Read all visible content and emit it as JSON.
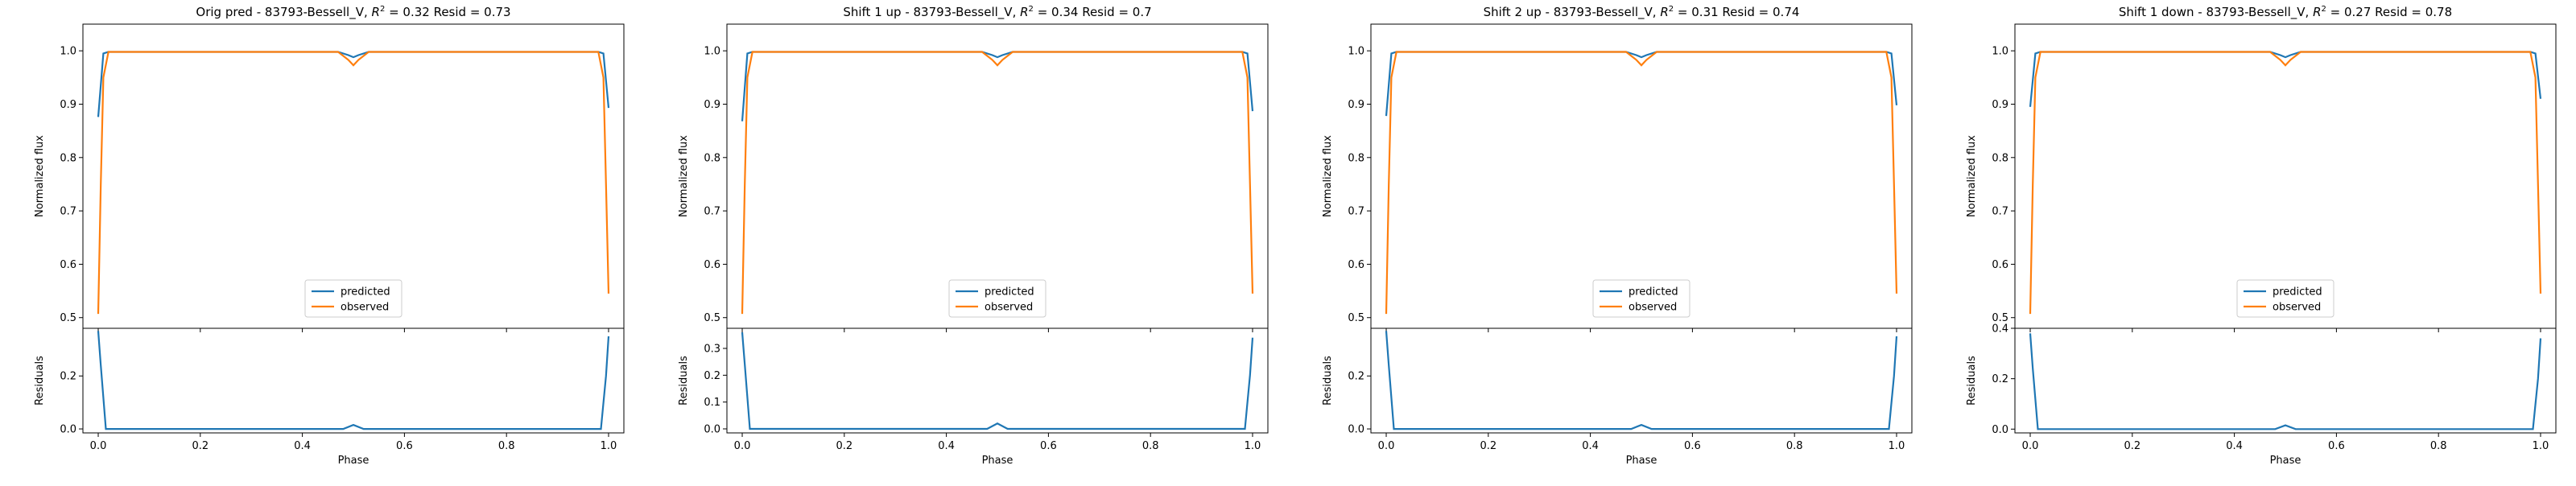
{
  "figure": {
    "colors": {
      "predicted": "#1f77b4",
      "observed": "#ff7f0e",
      "axis": "#000000"
    },
    "legend_location": "lower center",
    "labels": {
      "top_ylabel": "Normalized flux",
      "bottom_ylabel": "Residuals",
      "xlabel": "Phase",
      "legend_predicted": "predicted",
      "legend_observed": "observed"
    },
    "x_ticks": [
      "0.0",
      "0.2",
      "0.4",
      "0.6",
      "0.8",
      "1.0"
    ]
  },
  "chart_data": [
    {
      "type": "line",
      "title_prefix": "Orig pred - 83793-Bessell_V, ",
      "r2_label": "R",
      "r2_exp": "2",
      "title_suffix": " = 0.32 Resid = 0.73",
      "flux": {
        "ylim": [
          0.48,
          1.05
        ],
        "yticks": [
          "0.5",
          "0.6",
          "0.7",
          "0.8",
          "0.9",
          "1.0"
        ],
        "series": [
          {
            "name": "predicted",
            "x": [
              0.0,
              0.01,
              0.02,
              0.47,
              0.49,
              0.5,
              0.51,
              0.53,
              0.98,
              0.99,
              1.0
            ],
            "y": [
              0.876,
              0.995,
              0.998,
              0.998,
              0.992,
              0.988,
              0.992,
              0.998,
              0.998,
              0.995,
              0.893
            ]
          },
          {
            "name": "observed",
            "x": [
              0.0,
              0.005,
              0.01,
              0.02,
              0.47,
              0.49,
              0.5,
              0.51,
              0.53,
              0.98,
              0.99,
              0.995,
              1.0
            ],
            "y": [
              0.507,
              0.75,
              0.95,
              0.998,
              0.998,
              0.983,
              0.973,
              0.983,
              0.998,
              0.998,
              0.95,
              0.75,
              0.545
            ]
          }
        ]
      },
      "resid": {
        "ylim": [
          -0.015,
          0.38
        ],
        "yticks": [
          "0.0",
          "0.2"
        ],
        "x": [
          0.0,
          0.005,
          0.015,
          0.48,
          0.5,
          0.52,
          0.985,
          0.995,
          1.0
        ],
        "y": [
          0.37,
          0.24,
          0.0,
          0.0,
          0.015,
          0.0,
          0.0,
          0.2,
          0.35
        ]
      }
    },
    {
      "type": "line",
      "title_prefix": "Shift 1 up - 83793-Bessell_V, ",
      "r2_label": "R",
      "r2_exp": "2",
      "title_suffix": " = 0.34 Resid = 0.7",
      "flux": {
        "ylim": [
          0.48,
          1.05
        ],
        "yticks": [
          "0.5",
          "0.6",
          "0.7",
          "0.8",
          "0.9",
          "1.0"
        ],
        "series": [
          {
            "name": "predicted",
            "x": [
              0.0,
              0.01,
              0.02,
              0.47,
              0.49,
              0.5,
              0.51,
              0.53,
              0.98,
              0.99,
              1.0
            ],
            "y": [
              0.868,
              0.995,
              0.998,
              0.998,
              0.992,
              0.988,
              0.992,
              0.998,
              0.998,
              0.995,
              0.887
            ]
          },
          {
            "name": "observed",
            "x": [
              0.0,
              0.005,
              0.01,
              0.02,
              0.47,
              0.49,
              0.5,
              0.51,
              0.53,
              0.98,
              0.99,
              0.995,
              1.0
            ],
            "y": [
              0.507,
              0.75,
              0.95,
              0.998,
              0.998,
              0.983,
              0.973,
              0.983,
              0.998,
              0.998,
              0.95,
              0.75,
              0.545
            ]
          }
        ]
      },
      "resid": {
        "ylim": [
          -0.015,
          0.375
        ],
        "yticks": [
          "0.0",
          "0.1",
          "0.2",
          "0.3"
        ],
        "x": [
          0.0,
          0.005,
          0.015,
          0.48,
          0.5,
          0.52,
          0.985,
          0.995,
          1.0
        ],
        "y": [
          0.36,
          0.24,
          0.0,
          0.0,
          0.02,
          0.0,
          0.0,
          0.2,
          0.34
        ]
      }
    },
    {
      "type": "line",
      "title_prefix": "Shift 2 up - 83793-Bessell_V, ",
      "r2_label": "R",
      "r2_exp": "2",
      "title_suffix": " = 0.31 Resid = 0.74",
      "flux": {
        "ylim": [
          0.48,
          1.05
        ],
        "yticks": [
          "0.5",
          "0.6",
          "0.7",
          "0.8",
          "0.9",
          "1.0"
        ],
        "series": [
          {
            "name": "predicted",
            "x": [
              0.0,
              0.01,
              0.02,
              0.47,
              0.49,
              0.5,
              0.51,
              0.53,
              0.98,
              0.99,
              1.0
            ],
            "y": [
              0.878,
              0.995,
              0.998,
              0.998,
              0.992,
              0.988,
              0.992,
              0.998,
              0.998,
              0.995,
              0.898
            ]
          },
          {
            "name": "observed",
            "x": [
              0.0,
              0.005,
              0.01,
              0.02,
              0.47,
              0.49,
              0.5,
              0.51,
              0.53,
              0.98,
              0.99,
              0.995,
              1.0
            ],
            "y": [
              0.507,
              0.75,
              0.95,
              0.998,
              0.998,
              0.983,
              0.973,
              0.983,
              0.998,
              0.998,
              0.95,
              0.75,
              0.545
            ]
          }
        ]
      },
      "resid": {
        "ylim": [
          -0.015,
          0.38
        ],
        "yticks": [
          "0.0",
          "0.2"
        ],
        "x": [
          0.0,
          0.005,
          0.015,
          0.48,
          0.5,
          0.52,
          0.985,
          0.995,
          1.0
        ],
        "y": [
          0.37,
          0.24,
          0.0,
          0.0,
          0.015,
          0.0,
          0.0,
          0.2,
          0.35
        ]
      }
    },
    {
      "type": "line",
      "title_prefix": "Shift 1 down - 83793-Bessell_V, ",
      "r2_label": "R",
      "r2_exp": "2",
      "title_suffix": " = 0.27 Resid = 0.78",
      "flux": {
        "ylim": [
          0.48,
          1.05
        ],
        "yticks": [
          "0.5",
          "0.6",
          "0.7",
          "0.8",
          "0.9",
          "1.0"
        ],
        "series": [
          {
            "name": "predicted",
            "x": [
              0.0,
              0.01,
              0.02,
              0.47,
              0.49,
              0.5,
              0.51,
              0.53,
              0.98,
              0.99,
              1.0
            ],
            "y": [
              0.895,
              0.995,
              0.998,
              0.998,
              0.992,
              0.988,
              0.992,
              0.998,
              0.998,
              0.995,
              0.91
            ]
          },
          {
            "name": "observed",
            "x": [
              0.0,
              0.005,
              0.01,
              0.02,
              0.47,
              0.49,
              0.5,
              0.51,
              0.53,
              0.98,
              0.99,
              0.995,
              1.0
            ],
            "y": [
              0.507,
              0.75,
              0.95,
              0.998,
              0.998,
              0.983,
              0.973,
              0.983,
              0.998,
              0.998,
              0.95,
              0.75,
              0.545
            ]
          }
        ]
      },
      "resid": {
        "ylim": [
          -0.015,
          0.4
        ],
        "yticks": [
          "0.0",
          "0.2",
          "0.4"
        ],
        "x": [
          0.0,
          0.005,
          0.015,
          0.48,
          0.5,
          0.52,
          0.985,
          0.995,
          1.0
        ],
        "y": [
          0.38,
          0.24,
          0.0,
          0.0,
          0.015,
          0.0,
          0.0,
          0.2,
          0.36
        ]
      }
    }
  ]
}
